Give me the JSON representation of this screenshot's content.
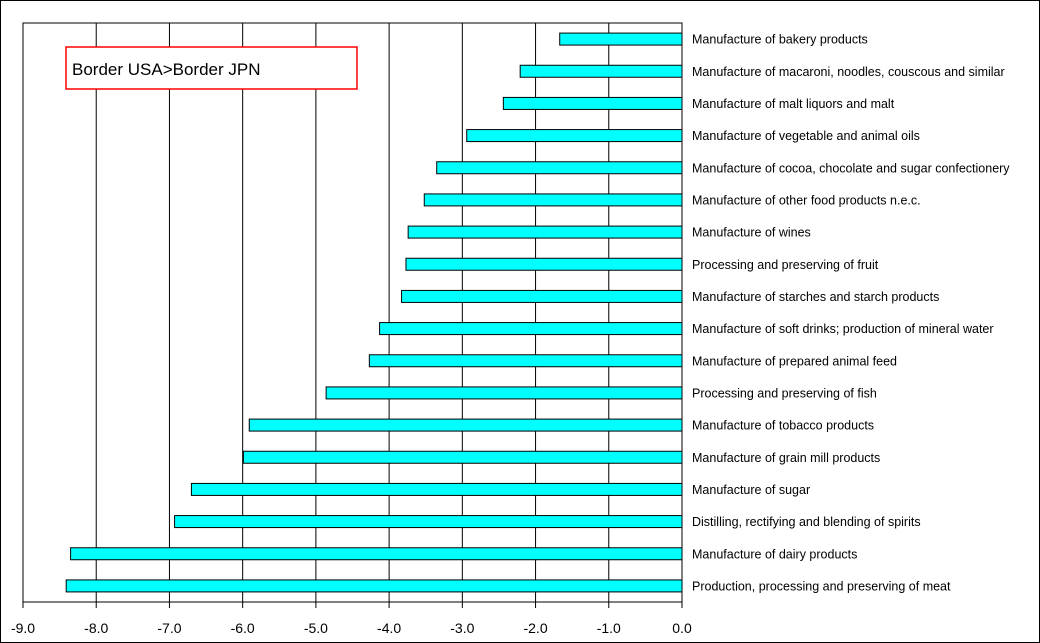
{
  "chart_data": {
    "type": "bar",
    "orientation": "horizontal",
    "title": "",
    "xlabel": "",
    "ylabel": "",
    "xlim": [
      -9.0,
      0.0
    ],
    "x_ticks": [
      "-9.0",
      "-8.0",
      "-7.0",
      "-6.0",
      "-5.0",
      "-4.0",
      "-3.0",
      "-2.0",
      "-1.0",
      "0.0"
    ],
    "x_tick_values": [
      -9,
      -8,
      -7,
      -6,
      -5,
      -4,
      -3,
      -2,
      -1,
      0
    ],
    "grid": "vertical",
    "legend": "none",
    "bar_color": "#00FFFF",
    "annotation": {
      "text": "Border USA>Border JPN",
      "border_color": "#FF0000"
    },
    "categories": [
      "Manufacture of bakery products",
      "Manufacture of macaroni, noodles, couscous and similar",
      "Manufacture of malt liquors and malt",
      "Manufacture of vegetable and animal oils",
      "Manufacture of cocoa, chocolate and sugar confectionery",
      "Manufacture of other food products n.e.c.",
      "Manufacture of wines",
      "Processing and preserving of fruit",
      "Manufacture of starches and starch products",
      "Manufacture of soft drinks; production of mineral water",
      "Manufacture of prepared animal feed",
      "Processing and preserving of fish",
      "Manufacture of tobacco products",
      "Manufacture of grain mill products",
      "Manufacture of sugar",
      "Distilling, rectifying and blending of spirits",
      "Manufacture of dairy products",
      "Production, processing and preserving of meat"
    ],
    "values": [
      -1.67,
      -2.21,
      -2.44,
      -2.94,
      -3.35,
      -3.52,
      -3.74,
      -3.77,
      -3.83,
      -4.13,
      -4.27,
      -4.86,
      -5.91,
      -5.99,
      -6.7,
      -6.93,
      -8.35,
      -8.41
    ]
  }
}
